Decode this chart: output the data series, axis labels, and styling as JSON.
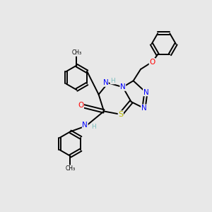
{
  "background_color": "#e8e8e8",
  "atom_colors": {
    "C": "#000000",
    "N": "#0000ff",
    "O": "#ff0000",
    "S": "#b8b800",
    "H": "#7fbfbf"
  },
  "figsize": [
    3.0,
    3.0
  ],
  "dpi": 100
}
